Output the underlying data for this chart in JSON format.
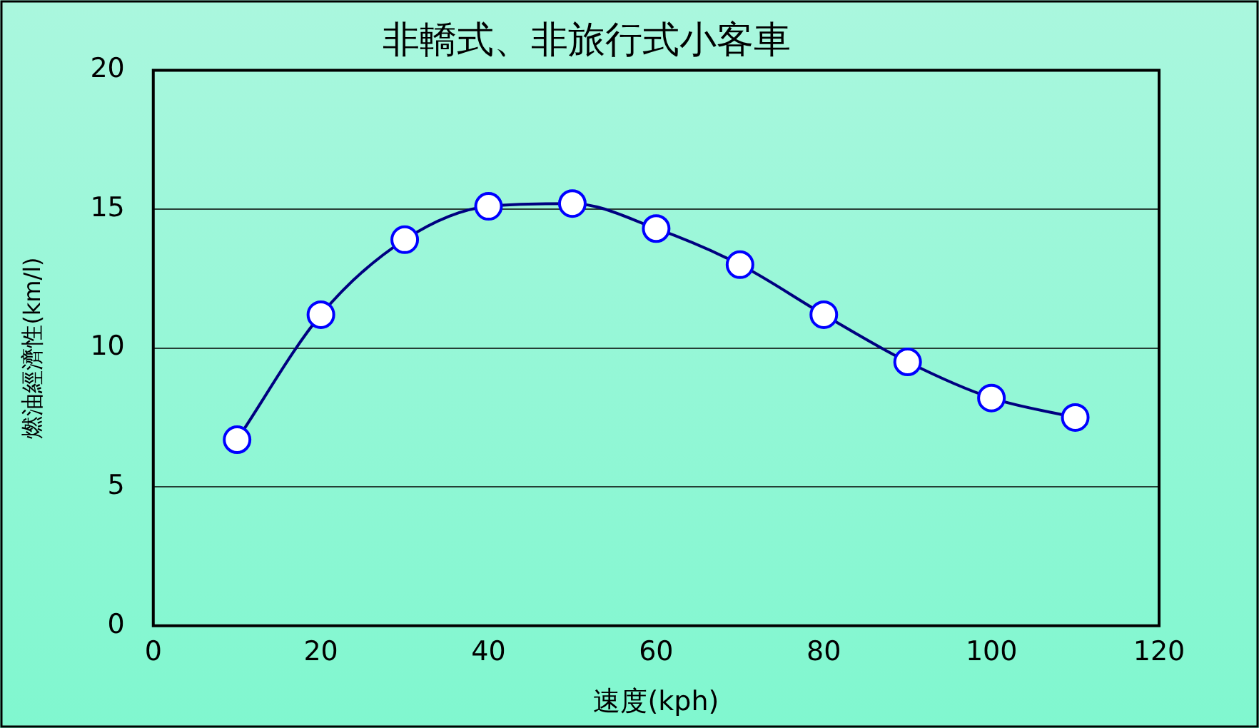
{
  "chart_data": {
    "type": "line",
    "title": "非轎式、非旅行式小客車",
    "xlabel": "速度(kph)",
    "ylabel": "燃油經濟性(km/l)",
    "x": [
      10,
      20,
      30,
      40,
      50,
      60,
      70,
      80,
      90,
      100,
      110
    ],
    "series": [
      {
        "color": "#000080",
        "values": [
          6.7,
          11.2,
          13.9,
          15.1,
          15.2,
          14.3,
          13.0,
          11.2,
          9.5,
          8.2,
          7.5
        ]
      }
    ],
    "xlim": [
      0,
      120
    ],
    "xticks": [
      0,
      20,
      40,
      60,
      80,
      100,
      120
    ],
    "ylim": [
      0,
      20
    ],
    "yticks": [
      0,
      5,
      10,
      15,
      20
    ],
    "grid": "y",
    "legend": false,
    "marker": "circle",
    "line_style": "solid"
  }
}
